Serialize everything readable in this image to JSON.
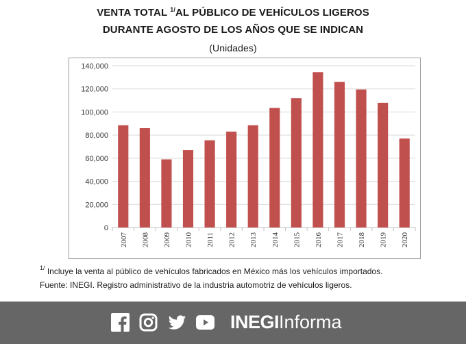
{
  "header": {
    "title_part1": "VENTA TOTAL ",
    "title_sup": "1/",
    "title_part2": "AL PÚBLICO DE VEHÍCULOS LIGEROS",
    "title_line2": "DURANTE AGOSTO DE LOS AÑOS QUE SE INDICAN",
    "units": "(Unidades)"
  },
  "chart_data": {
    "type": "bar",
    "categories": [
      "2007",
      "2008",
      "2009",
      "2010",
      "2011",
      "2012",
      "2013",
      "2014",
      "2015",
      "2016",
      "2017",
      "2018",
      "2019",
      "2020"
    ],
    "values": [
      88500,
      86000,
      59000,
      67000,
      75500,
      83000,
      88500,
      103500,
      112000,
      134500,
      126000,
      119500,
      108000,
      77000
    ],
    "ylim": [
      0,
      140000
    ],
    "yticks": [
      "0",
      "20,000",
      "40,000",
      "60,000",
      "80,000",
      "100,000",
      "120,000",
      "140,000"
    ],
    "grid": true,
    "bar_color": "#c0504d"
  },
  "notes": {
    "footnote_sup": "1/",
    "footnote_text": " Incluye la venta al público de vehículos fabricados en México más los vehículos importados.",
    "source": "Fuente: INEGI. Registro administrativo de la industria automotriz de vehículos ligeros."
  },
  "footer": {
    "social_icons": [
      "facebook-icon",
      "instagram-icon",
      "twitter-icon",
      "youtube-icon"
    ],
    "brand_bold": "INEGI",
    "brand_light": "Informa",
    "background": "#666666"
  }
}
